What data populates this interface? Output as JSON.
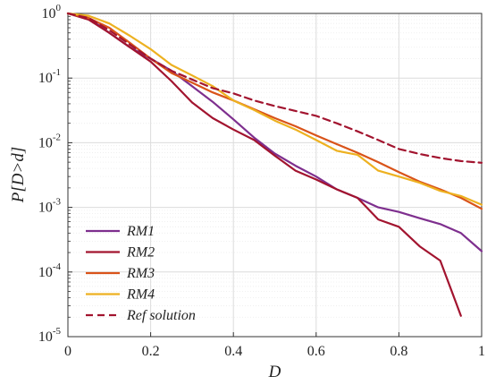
{
  "chart_data": {
    "type": "line",
    "xlabel": "D",
    "ylabel": "P[D>d]",
    "xlim": [
      0,
      1
    ],
    "ylim": [
      1e-05,
      1
    ],
    "y_scale": "log",
    "x_ticks": [
      "0",
      "0.2",
      "0.4",
      "0.6",
      "0.8",
      "1"
    ],
    "y_ticks": [
      {
        "base": "10",
        "exp": "0"
      },
      {
        "base": "10",
        "exp": "-1"
      },
      {
        "base": "10",
        "exp": "-2"
      },
      {
        "base": "10",
        "exp": "-3"
      },
      {
        "base": "10",
        "exp": "-4"
      },
      {
        "base": "10",
        "exp": "-5"
      }
    ],
    "grid": true,
    "legend_position": "bottom-left",
    "series": [
      {
        "name": "RM1",
        "color": "#7E2F8E",
        "dash": "solid",
        "x": [
          0,
          0.05,
          0.1,
          0.15,
          0.2,
          0.25,
          0.3,
          0.35,
          0.4,
          0.45,
          0.5,
          0.55,
          0.6,
          0.65,
          0.7,
          0.75,
          0.8,
          0.85,
          0.9,
          0.95,
          1.0
        ],
        "y": [
          1.0,
          0.85,
          0.5,
          0.3,
          0.2,
          0.13,
          0.075,
          0.043,
          0.023,
          0.012,
          0.0068,
          0.0044,
          0.003,
          0.0019,
          0.0014,
          0.001,
          0.00085,
          0.00068,
          0.00055,
          0.0004,
          0.00021
        ]
      },
      {
        "name": "RM2",
        "color": "#A2142F",
        "dash": "solid",
        "x": [
          0,
          0.05,
          0.1,
          0.15,
          0.2,
          0.25,
          0.3,
          0.35,
          0.4,
          0.45,
          0.5,
          0.55,
          0.6,
          0.65,
          0.7,
          0.75,
          0.8,
          0.85,
          0.9,
          0.95
        ],
        "y": [
          1.0,
          0.8,
          0.5,
          0.3,
          0.18,
          0.09,
          0.042,
          0.024,
          0.016,
          0.011,
          0.0063,
          0.0037,
          0.0027,
          0.0019,
          0.0014,
          0.00065,
          0.0005,
          0.00025,
          0.00015,
          2.1e-05
        ]
      },
      {
        "name": "RM3",
        "color": "#D95319",
        "dash": "solid",
        "x": [
          0,
          0.05,
          0.1,
          0.15,
          0.2,
          0.25,
          0.3,
          0.35,
          0.4,
          0.45,
          0.5,
          0.55,
          0.6,
          0.65,
          0.7,
          0.75,
          0.8,
          0.85,
          0.9,
          0.95,
          1.0
        ],
        "y": [
          1.0,
          0.85,
          0.6,
          0.35,
          0.2,
          0.12,
          0.085,
          0.06,
          0.045,
          0.033,
          0.024,
          0.018,
          0.013,
          0.0095,
          0.007,
          0.005,
          0.0035,
          0.0025,
          0.0019,
          0.0014,
          0.00095
        ]
      },
      {
        "name": "RM4",
        "color": "#EDB120",
        "dash": "solid",
        "x": [
          0,
          0.05,
          0.1,
          0.15,
          0.2,
          0.25,
          0.3,
          0.35,
          0.4,
          0.45,
          0.5,
          0.55,
          0.6,
          0.65,
          0.7,
          0.75,
          0.8,
          0.85,
          0.9,
          0.95,
          1.0
        ],
        "y": [
          1.0,
          0.92,
          0.7,
          0.45,
          0.28,
          0.16,
          0.11,
          0.075,
          0.045,
          0.032,
          0.022,
          0.016,
          0.011,
          0.0075,
          0.0065,
          0.0037,
          0.003,
          0.0024,
          0.0018,
          0.0015,
          0.0011
        ]
      },
      {
        "name": "Ref solution",
        "color": "#A2142F",
        "dash": "dashed",
        "x": [
          0,
          0.05,
          0.1,
          0.15,
          0.2,
          0.25,
          0.3,
          0.35,
          0.4,
          0.45,
          0.5,
          0.55,
          0.6,
          0.65,
          0.7,
          0.75,
          0.8,
          0.85,
          0.9,
          0.95,
          1.0
        ],
        "y": [
          1.0,
          0.85,
          0.55,
          0.33,
          0.2,
          0.13,
          0.095,
          0.07,
          0.058,
          0.045,
          0.037,
          0.031,
          0.026,
          0.02,
          0.015,
          0.011,
          0.008,
          0.0067,
          0.0058,
          0.0052,
          0.0049
        ]
      }
    ]
  }
}
